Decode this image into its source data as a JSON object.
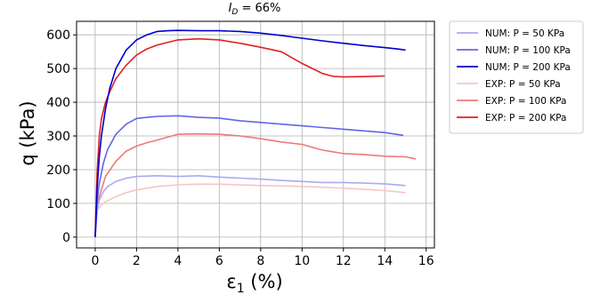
{
  "chart_data": {
    "type": "line",
    "title": "I_D = 66%",
    "title_parts": {
      "symbol": "I",
      "subscript": "D",
      "rest": " = 66%"
    },
    "xlabel": "ε1 (%)",
    "xlabel_parts": {
      "symbol": "ε",
      "subscript": "1",
      "rest": " (%)"
    },
    "ylabel": "q (kPa)",
    "xlim": [
      -0.9,
      16.4
    ],
    "ylim": [
      -32,
      640
    ],
    "xticks": [
      0,
      2,
      4,
      6,
      8,
      10,
      12,
      14,
      16
    ],
    "yticks": [
      0,
      100,
      200,
      300,
      400,
      500,
      600
    ],
    "grid": true,
    "legend_position": "outside-right-top",
    "series": [
      {
        "name": "NUM: P = 50 KPa",
        "color": "#aaaaf0",
        "x": [
          0,
          0.1,
          0.2,
          0.4,
          0.6,
          1.0,
          1.5,
          2,
          3,
          4,
          5,
          6,
          7,
          8,
          9,
          10,
          11,
          12,
          13,
          14,
          15
        ],
        "y": [
          0,
          80,
          110,
          135,
          150,
          165,
          175,
          180,
          182,
          180,
          182,
          178,
          175,
          172,
          168,
          165,
          162,
          162,
          160,
          158,
          153
        ]
      },
      {
        "name": "NUM: P = 100 KPa",
        "color": "#6464e8",
        "x": [
          0,
          0.1,
          0.2,
          0.4,
          0.6,
          1.0,
          1.5,
          2,
          2.5,
          3,
          4,
          5,
          6,
          7,
          8,
          9,
          10,
          11,
          12,
          13,
          14,
          14.9
        ],
        "y": [
          0,
          110,
          160,
          220,
          260,
          305,
          335,
          352,
          355,
          358,
          360,
          355,
          353,
          345,
          340,
          335,
          330,
          325,
          320,
          315,
          310,
          302
        ]
      },
      {
        "name": "NUM: P = 200 KPa",
        "color": "#0000cd",
        "x": [
          0,
          0.1,
          0.2,
          0.3,
          0.5,
          0.7,
          1.0,
          1.5,
          2,
          2.5,
          3,
          3.5,
          4,
          5,
          6,
          7,
          8,
          9,
          10,
          11,
          12,
          13,
          14,
          14.6,
          15
        ],
        "y": [
          0,
          150,
          240,
          300,
          380,
          440,
          500,
          555,
          585,
          600,
          610,
          612,
          613,
          612,
          612,
          610,
          605,
          598,
          590,
          582,
          575,
          568,
          562,
          558,
          555
        ]
      },
      {
        "name": "EXP: P = 50 KPa",
        "color": "#f8c4c4",
        "x": [
          0,
          0.1,
          0.3,
          0.5,
          1.0,
          1.5,
          2,
          3,
          4,
          5,
          6,
          7,
          8,
          9,
          10,
          11,
          12,
          13,
          14,
          15
        ],
        "y": [
          0,
          80,
          95,
          105,
          120,
          132,
          140,
          150,
          155,
          157,
          157,
          155,
          153,
          152,
          150,
          148,
          145,
          142,
          138,
          132
        ]
      },
      {
        "name": "EXP: P = 100 KPa",
        "color": "#f07878",
        "x": [
          0,
          0.1,
          0.3,
          0.5,
          1.0,
          1.5,
          2,
          2.5,
          3,
          4,
          5,
          6,
          7,
          8,
          9,
          10,
          11,
          12,
          13,
          14,
          15,
          15.5
        ],
        "y": [
          0,
          100,
          140,
          180,
          225,
          255,
          270,
          280,
          288,
          305,
          306,
          305,
          300,
          292,
          282,
          275,
          258,
          248,
          245,
          240,
          238,
          232
        ]
      },
      {
        "name": "EXP: P = 200 KPa",
        "color": "#e02020",
        "x": [
          0,
          0.1,
          0.2,
          0.3,
          0.5,
          0.7,
          1.0,
          1.5,
          2,
          2.5,
          3,
          4,
          5,
          6,
          7,
          8,
          9,
          10,
          10.5,
          11,
          11.5,
          12,
          13,
          14
        ],
        "y": [
          0,
          200,
          300,
          350,
          400,
          430,
          470,
          510,
          540,
          558,
          570,
          585,
          588,
          585,
          575,
          563,
          550,
          515,
          500,
          485,
          477,
          475,
          476,
          478
        ]
      }
    ]
  }
}
